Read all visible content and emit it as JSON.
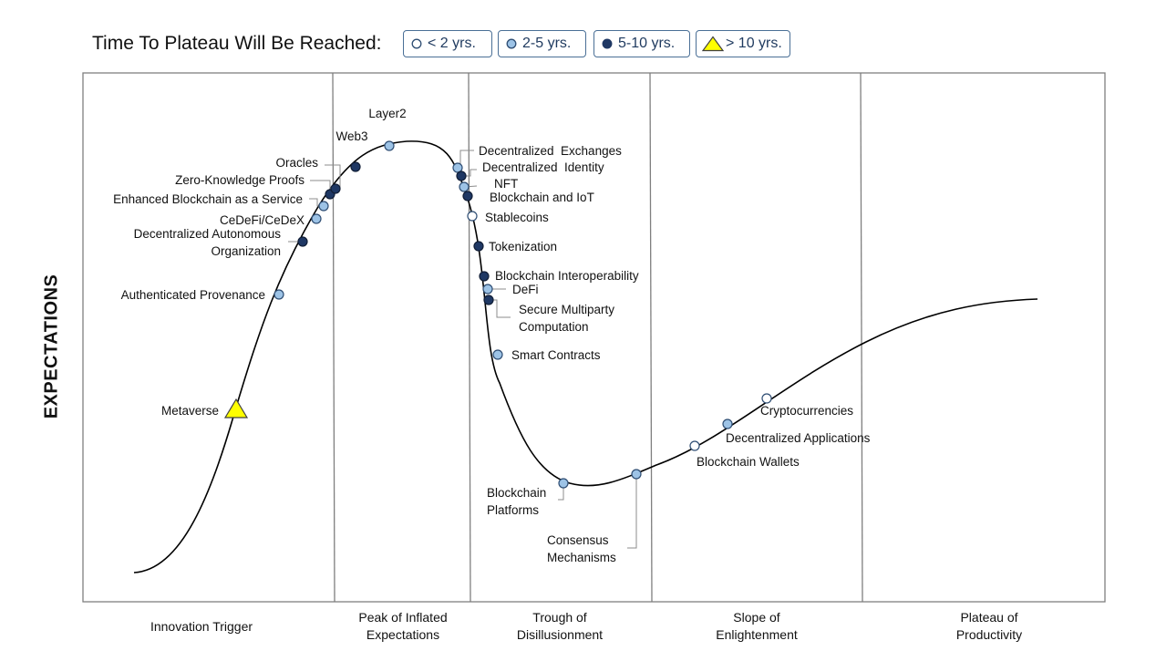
{
  "legend": {
    "title": "Time To Plateau Will Be Reached:",
    "items": [
      {
        "key": "lt2",
        "label": "< 2 yrs.",
        "shape": "circle",
        "fill": "#ffffff"
      },
      {
        "key": "2to5",
        "label": "2-5 yrs.",
        "shape": "circle",
        "fill": "#9dc3e6"
      },
      {
        "key": "5to10",
        "label": "5-10 yrs.",
        "shape": "circle",
        "fill": "#1f3864"
      },
      {
        "key": "gt10",
        "label": "> 10 yrs.",
        "shape": "triangle",
        "fill": "#ffff00"
      }
    ]
  },
  "axis": {
    "ylabel": "EXPECTATIONS"
  },
  "phases": [
    {
      "id": "innovation-trigger",
      "lines": [
        "Innovation Trigger"
      ]
    },
    {
      "id": "peak",
      "lines": [
        "Peak of Inflated",
        "Expectations"
      ]
    },
    {
      "id": "trough",
      "lines": [
        "Trough of",
        "Disillusionment"
      ]
    },
    {
      "id": "slope",
      "lines": [
        "Slope of",
        "Enlightenment"
      ]
    },
    {
      "id": "plateau",
      "lines": [
        "Plateau of",
        "Productivity"
      ]
    }
  ],
  "colors": {
    "curve": "#000000",
    "frame": "#7f7f7f",
    "legend_border": "#4a6f96",
    "marker_stroke": "#2e4d73"
  },
  "technologies": [
    {
      "name": "Metaverse",
      "lines": [
        "Metaverse"
      ],
      "category": "gt10"
    },
    {
      "name": "Authenticated Provenance",
      "lines": [
        "Authenticated Provenance"
      ],
      "category": "2to5"
    },
    {
      "name": "Decentralized Autonomous Organization",
      "lines": [
        "Decentralized Autonomous",
        "Organization"
      ],
      "category": "5to10"
    },
    {
      "name": "CeDeFi/CeDeX",
      "lines": [
        "CeDeFi/CeDeX"
      ],
      "category": "2to5"
    },
    {
      "name": "Enhanced Blockchain as a Service",
      "lines": [
        "Enhanced Blockchain as a Service"
      ],
      "category": "2to5"
    },
    {
      "name": "Zero-Knowledge Proofs",
      "lines": [
        "Zero-Knowledge Proofs"
      ],
      "category": "5to10"
    },
    {
      "name": "Oracles",
      "lines": [
        "Oracles"
      ],
      "category": "5to10"
    },
    {
      "name": "Web3",
      "lines": [
        "Web3"
      ],
      "category": "5to10"
    },
    {
      "name": "Layer2",
      "lines": [
        "Layer2"
      ],
      "category": "2to5"
    },
    {
      "name": "Decentralized Exchanges",
      "lines": [
        "Decentralized  Exchanges"
      ],
      "category": "2to5"
    },
    {
      "name": "Decentralized Identity",
      "lines": [
        "Decentralized  Identity"
      ],
      "category": "5to10"
    },
    {
      "name": "NFT",
      "lines": [
        "NFT"
      ],
      "category": "2to5"
    },
    {
      "name": "Blockchain and IoT",
      "lines": [
        "Blockchain and IoT"
      ],
      "category": "5to10"
    },
    {
      "name": "Stablecoins",
      "lines": [
        "Stablecoins"
      ],
      "category": "lt2"
    },
    {
      "name": "Tokenization",
      "lines": [
        "Tokenization"
      ],
      "category": "5to10"
    },
    {
      "name": "Blockchain Interoperability",
      "lines": [
        "Blockchain Interoperability"
      ],
      "category": "5to10"
    },
    {
      "name": "DeFi",
      "lines": [
        "DeFi"
      ],
      "category": "2to5"
    },
    {
      "name": "Secure Multiparty Computation",
      "lines": [
        "Secure Multiparty",
        "Computation"
      ],
      "category": "5to10"
    },
    {
      "name": "Smart Contracts",
      "lines": [
        "Smart Contracts"
      ],
      "category": "2to5"
    },
    {
      "name": "Blockchain Platforms",
      "lines": [
        "Blockchain",
        "Platforms"
      ],
      "category": "2to5"
    },
    {
      "name": "Consensus Mechanisms",
      "lines": [
        "Consensus",
        "Mechanisms"
      ],
      "category": "2to5"
    },
    {
      "name": "Blockchain Wallets",
      "lines": [
        "Blockchain Wallets"
      ],
      "category": "lt2"
    },
    {
      "name": "Decentralized Applications",
      "lines": [
        "Decentralized Applications"
      ],
      "category": "2to5"
    },
    {
      "name": "Cryptocurrencies",
      "lines": [
        "Cryptocurrencies"
      ],
      "category": "lt2"
    }
  ]
}
